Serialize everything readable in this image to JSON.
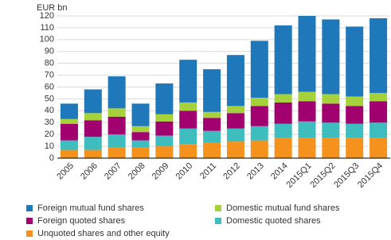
{
  "chart_data": {
    "type": "stacked-bar",
    "y_label": "EUR bn",
    "categories": [
      "2005",
      "2006",
      "2007",
      "2008",
      "2009",
      "2010",
      "2011",
      "2012",
      "2013",
      "2014",
      "2015Q1",
      "2015Q2",
      "2015Q3",
      "2015Q4"
    ],
    "series": [
      {
        "name": "Foreign mutual fund shares",
        "color": "#1f78b9",
        "values": [
          13,
          20,
          27,
          19,
          26,
          36,
          36,
          43,
          48,
          58,
          64,
          63,
          59,
          63
        ]
      },
      {
        "name": "Domestic mutual fund shares",
        "color": "#a5d23a",
        "values": [
          4,
          6,
          7,
          5,
          6,
          7,
          5,
          6,
          7,
          7,
          8,
          8,
          8,
          7
        ]
      },
      {
        "name": "Foreign quoted shares",
        "color": "#a1006f",
        "values": [
          14,
          14,
          15,
          7,
          12,
          15,
          11,
          13,
          17,
          18,
          17,
          16,
          15,
          18
        ]
      },
      {
        "name": "Domestic quoted shares",
        "color": "#3ebdbf",
        "values": [
          8,
          11,
          11,
          6,
          9,
          13,
          10,
          11,
          12,
          12,
          14,
          13,
          12,
          13
        ]
      },
      {
        "name": "Unquoted shares and other equity",
        "color": "#f5921e",
        "values": [
          7,
          7,
          9,
          9,
          10,
          12,
          13,
          14,
          15,
          17,
          17,
          17,
          17,
          17
        ]
      }
    ],
    "ylim": [
      0,
      120
    ],
    "yticks": [
      0,
      10,
      20,
      30,
      40,
      50,
      60,
      70,
      80,
      90,
      100,
      110,
      120
    ],
    "grid": true
  }
}
